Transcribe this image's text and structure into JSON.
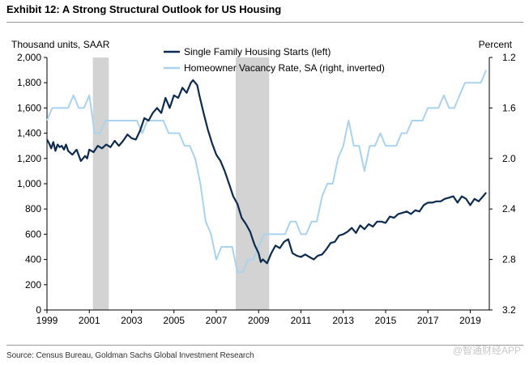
{
  "title": "Exhibit 12: A Strong Structural Outlook for US Housing",
  "source": "Source: Census Bureau, Goldman Sachs Global Investment Research",
  "watermark": "@智通财经APP",
  "colors": {
    "starts": "#0d2b4e",
    "vacancy": "#a9d3ef",
    "recession": "#d3d3d3",
    "axis": "#000000"
  },
  "chart_data": {
    "type": "line",
    "title": "Exhibit 12: A Strong Structural Outlook for US Housing",
    "ylabel_left": "Thousand units, SAAR",
    "ylabel_right": "Percent",
    "xlim": [
      1999,
      2019.9
    ],
    "ylim_left": [
      0,
      2000
    ],
    "ylim_right": [
      1.2,
      3.2
    ],
    "right_axis_inverted": true,
    "x_ticks": [
      "1999",
      "2001",
      "2003",
      "2005",
      "2007",
      "2009",
      "2011",
      "2013",
      "2015",
      "2017",
      "2019"
    ],
    "y_ticks_left": [
      "0",
      "200",
      "400",
      "600",
      "800",
      "1,000",
      "1,200",
      "1,400",
      "1,600",
      "1,800",
      "2,000"
    ],
    "y_ticks_right": [
      "1.2",
      "1.6",
      "2.0",
      "2.4",
      "2.8",
      "3.2"
    ],
    "legend": [
      "Single Family Housing Starts (left)",
      "Homeowner Vacancy Rate, SA (right, inverted)"
    ],
    "recessions": [
      [
        2001.17,
        2001.92
      ],
      [
        2007.92,
        2009.5
      ]
    ],
    "series": [
      {
        "name": "Single Family Housing Starts (left)",
        "axis": "left",
        "x": [
          1999.0,
          1999.1,
          1999.2,
          1999.3,
          1999.4,
          1999.5,
          1999.6,
          1999.7,
          1999.8,
          1999.9,
          2000.0,
          2000.2,
          2000.4,
          2000.6,
          2000.8,
          2000.9,
          2001.0,
          2001.2,
          2001.4,
          2001.6,
          2001.8,
          2002.0,
          2002.2,
          2002.4,
          2002.6,
          2002.8,
          2003.0,
          2003.2,
          2003.4,
          2003.6,
          2003.8,
          2004.0,
          2004.2,
          2004.4,
          2004.6,
          2004.8,
          2005.0,
          2005.2,
          2005.4,
          2005.6,
          2005.8,
          2005.9,
          2006.0,
          2006.1,
          2006.2,
          2006.4,
          2006.6,
          2006.8,
          2007.0,
          2007.2,
          2007.4,
          2007.6,
          2007.8,
          2008.0,
          2008.2,
          2008.4,
          2008.6,
          2008.8,
          2009.0,
          2009.1,
          2009.2,
          2009.4,
          2009.6,
          2009.8,
          2010.0,
          2010.2,
          2010.4,
          2010.6,
          2010.8,
          2011.0,
          2011.2,
          2011.4,
          2011.6,
          2011.8,
          2012.0,
          2012.2,
          2012.4,
          2012.6,
          2012.8,
          2013.0,
          2013.2,
          2013.4,
          2013.6,
          2013.8,
          2014.0,
          2014.2,
          2014.4,
          2014.6,
          2014.8,
          2015.0,
          2015.2,
          2015.4,
          2015.6,
          2015.8,
          2016.0,
          2016.2,
          2016.4,
          2016.6,
          2016.8,
          2017.0,
          2017.2,
          2017.4,
          2017.6,
          2017.8,
          2018.0,
          2018.2,
          2018.4,
          2018.6,
          2018.8,
          2019.0,
          2019.2,
          2019.4,
          2019.6,
          2019.75
        ],
        "values": [
          1350,
          1320,
          1280,
          1330,
          1260,
          1310,
          1290,
          1300,
          1270,
          1310,
          1260,
          1230,
          1270,
          1180,
          1220,
          1200,
          1270,
          1250,
          1300,
          1280,
          1310,
          1290,
          1340,
          1300,
          1340,
          1390,
          1360,
          1350,
          1420,
          1520,
          1500,
          1560,
          1600,
          1560,
          1680,
          1600,
          1700,
          1680,
          1760,
          1720,
          1800,
          1820,
          1800,
          1780,
          1700,
          1560,
          1430,
          1320,
          1230,
          1180,
          1100,
          1000,
          900,
          840,
          730,
          680,
          620,
          520,
          450,
          380,
          400,
          370,
          450,
          510,
          490,
          540,
          560,
          450,
          430,
          420,
          440,
          420,
          400,
          430,
          440,
          480,
          530,
          540,
          590,
          600,
          620,
          650,
          610,
          670,
          640,
          680,
          660,
          700,
          700,
          690,
          740,
          730,
          760,
          770,
          780,
          760,
          790,
          780,
          830,
          850,
          850,
          860,
          860,
          880,
          890,
          900,
          850,
          900,
          880,
          830,
          880,
          860,
          900,
          930
        ]
      },
      {
        "name": "Homeowner Vacancy Rate, SA (right, inverted)",
        "axis": "right",
        "x": [
          1999.0,
          1999.25,
          1999.5,
          1999.75,
          2000.0,
          2000.25,
          2000.5,
          2000.75,
          2001.0,
          2001.25,
          2001.5,
          2001.75,
          2002.0,
          2002.25,
          2002.5,
          2002.75,
          2003.0,
          2003.25,
          2003.5,
          2003.75,
          2004.0,
          2004.25,
          2004.5,
          2004.75,
          2005.0,
          2005.25,
          2005.5,
          2005.75,
          2006.0,
          2006.25,
          2006.5,
          2006.75,
          2007.0,
          2007.25,
          2007.5,
          2007.75,
          2008.0,
          2008.25,
          2008.5,
          2008.75,
          2009.0,
          2009.25,
          2009.5,
          2009.75,
          2010.0,
          2010.25,
          2010.5,
          2010.75,
          2011.0,
          2011.25,
          2011.5,
          2011.75,
          2012.0,
          2012.25,
          2012.5,
          2012.75,
          2013.0,
          2013.25,
          2013.5,
          2013.75,
          2014.0,
          2014.25,
          2014.5,
          2014.75,
          2015.0,
          2015.25,
          2015.5,
          2015.75,
          2016.0,
          2016.25,
          2016.5,
          2016.75,
          2017.0,
          2017.25,
          2017.5,
          2017.75,
          2018.0,
          2018.25,
          2018.5,
          2018.75,
          2019.0,
          2019.25,
          2019.5,
          2019.75
        ],
        "values": [
          1.7,
          1.6,
          1.6,
          1.6,
          1.6,
          1.5,
          1.6,
          1.6,
          1.5,
          1.8,
          1.8,
          1.7,
          1.7,
          1.7,
          1.7,
          1.7,
          1.7,
          1.7,
          1.8,
          1.7,
          1.7,
          1.7,
          1.7,
          1.8,
          1.8,
          1.8,
          1.9,
          1.9,
          2.0,
          2.2,
          2.5,
          2.6,
          2.8,
          2.7,
          2.7,
          2.7,
          2.9,
          2.9,
          2.8,
          2.8,
          2.7,
          2.6,
          2.6,
          2.6,
          2.6,
          2.6,
          2.5,
          2.5,
          2.6,
          2.6,
          2.5,
          2.5,
          2.3,
          2.2,
          2.2,
          2.0,
          1.9,
          1.7,
          1.9,
          1.9,
          2.1,
          1.9,
          1.9,
          1.8,
          1.9,
          1.9,
          1.9,
          1.8,
          1.8,
          1.7,
          1.7,
          1.7,
          1.6,
          1.6,
          1.6,
          1.5,
          1.6,
          1.6,
          1.5,
          1.4,
          1.4,
          1.4,
          1.4,
          1.3
        ]
      }
    ]
  }
}
